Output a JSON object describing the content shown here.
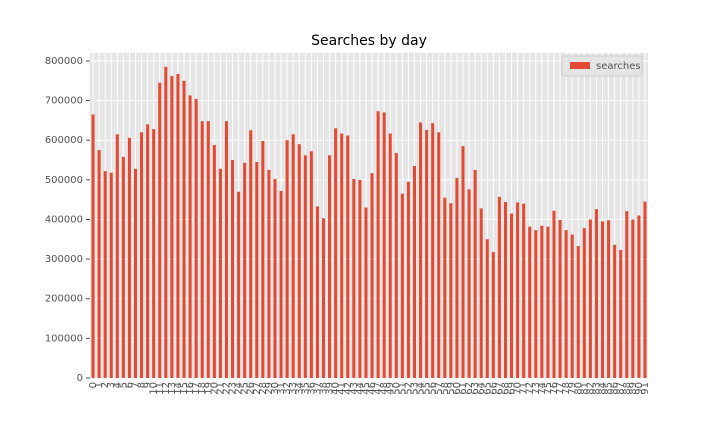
{
  "chart_data": {
    "type": "bar",
    "title": "Searches by day",
    "categories": [
      "0",
      "1",
      "2",
      "3",
      "4",
      "5",
      "6",
      "7",
      "8",
      "9",
      "10",
      "11",
      "12",
      "13",
      "14",
      "15",
      "16",
      "17",
      "18",
      "19",
      "20",
      "21",
      "22",
      "23",
      "24",
      "25",
      "26",
      "27",
      "28",
      "29",
      "30",
      "31",
      "32",
      "33",
      "34",
      "35",
      "36",
      "37",
      "38",
      "39",
      "40",
      "41",
      "42",
      "43",
      "44",
      "45",
      "46",
      "47",
      "48",
      "49",
      "50",
      "51",
      "52",
      "53",
      "54",
      "55",
      "56",
      "57",
      "58",
      "59",
      "60",
      "61",
      "62",
      "63",
      "64",
      "65",
      "66",
      "67",
      "68",
      "69",
      "70",
      "71",
      "72",
      "73",
      "74",
      "75",
      "76",
      "77",
      "78",
      "79",
      "80",
      "81",
      "82",
      "83",
      "84",
      "85",
      "86",
      "87",
      "88",
      "89",
      "90",
      "91"
    ],
    "series": [
      {
        "name": "searches",
        "color": "#e24a33",
        "values": [
          665000,
          575000,
          522000,
          518000,
          615000,
          558000,
          606000,
          528000,
          620000,
          640000,
          628000,
          745000,
          785000,
          762000,
          767000,
          750000,
          713000,
          704000,
          648000,
          648000,
          588000,
          528000,
          648000,
          550000,
          470000,
          543000,
          625000,
          545000,
          598000,
          525000,
          502000,
          472000,
          600000,
          615000,
          590000,
          562000,
          572000,
          433000,
          403000,
          562000,
          630000,
          617000,
          612000,
          502000,
          500000,
          430000,
          517000,
          673000,
          670000,
          617000,
          568000,
          465000,
          495000,
          535000,
          645000,
          626000,
          643000,
          620000,
          455000,
          441000,
          505000,
          585000,
          476000,
          525000,
          428000,
          350000,
          318000,
          457000,
          444000,
          415000,
          443000,
          440000,
          382000,
          373000,
          384000,
          382000,
          422000,
          399000,
          373000,
          362000,
          333000,
          378000,
          400000,
          426000,
          395000,
          398000,
          336000,
          323000,
          421000,
          400000,
          410000,
          445000
        ]
      }
    ],
    "ylim": [
      0,
      820000
    ],
    "yticks": [
      0,
      100000,
      200000,
      300000,
      400000,
      500000,
      600000,
      700000,
      800000
    ],
    "grid": true,
    "legend": "upper right"
  }
}
